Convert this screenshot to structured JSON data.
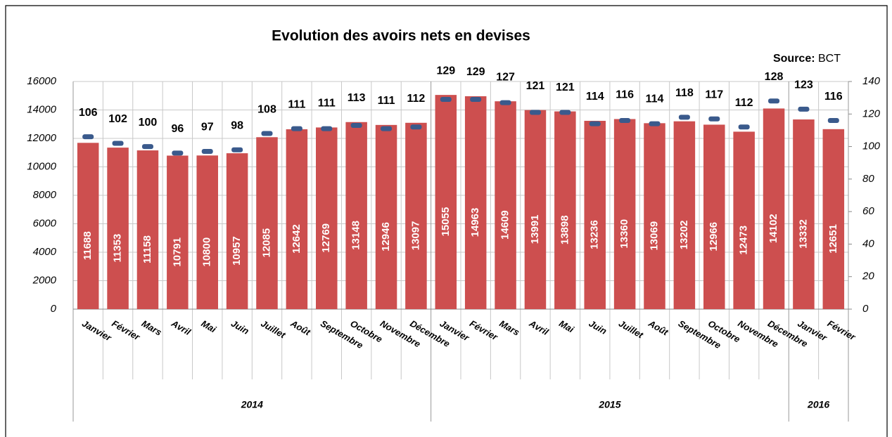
{
  "chart_data": {
    "type": "bar",
    "title": "Evolution des avoirs nets en devises",
    "source_label": "Source:",
    "source": "BCT",
    "groups": [
      {
        "label": "2014",
        "categories": [
          "Janvier",
          "Février",
          "Mars",
          "Avril",
          "Mai",
          "Juin",
          "Juillet",
          "Août",
          "Septembre",
          "Octobre",
          "Novembre",
          "Décembre"
        ]
      },
      {
        "label": "2015",
        "categories": [
          "Janvier",
          "Février",
          "Mars",
          "Avril",
          "Mai",
          "Juin",
          "Juillet",
          "Août",
          "Septembre",
          "Octobre",
          "Novembre",
          "Décembre"
        ]
      },
      {
        "label": "2016",
        "categories": [
          "Janvier",
          "Février"
        ]
      }
    ],
    "series": [
      {
        "type": "bar",
        "color": "#cd4f4f",
        "values": [
          11688,
          11353,
          11158,
          10791,
          10800,
          10957,
          12085,
          12642,
          12769,
          13148,
          12946,
          13097,
          15055,
          14963,
          14609,
          13991,
          13898,
          13236,
          13360,
          13069,
          13202,
          12966,
          12473,
          14102,
          13332,
          12651
        ]
      },
      {
        "type": "marker",
        "axis": "y2",
        "color": "#3a5a8c",
        "values": [
          106,
          102,
          100,
          96,
          97,
          98,
          108,
          111,
          111,
          113,
          111,
          112,
          129,
          129,
          127,
          121,
          121,
          114,
          116,
          114,
          118,
          117,
          112,
          128,
          123,
          116
        ]
      }
    ],
    "ylim": [
      0,
      16000
    ],
    "yticks": [
      0,
      2000,
      4000,
      6000,
      8000,
      10000,
      12000,
      14000,
      16000
    ],
    "y2lim": [
      0,
      140
    ],
    "y2ticks": [
      0,
      20,
      40,
      60,
      80,
      100,
      120,
      140
    ],
    "grid": true
  }
}
